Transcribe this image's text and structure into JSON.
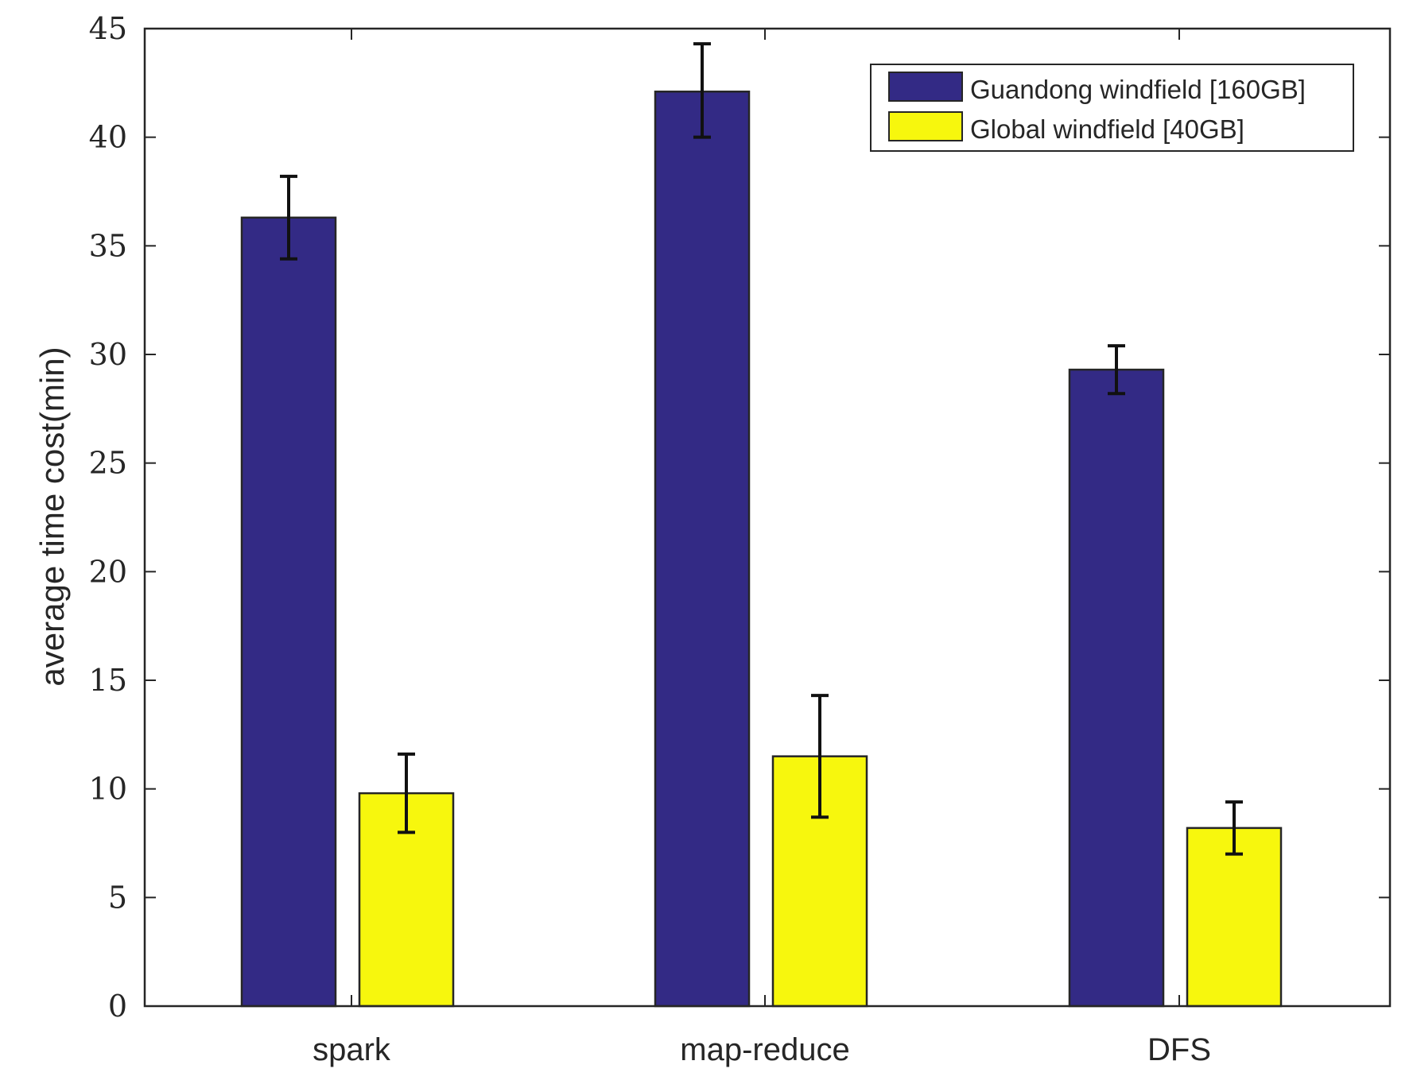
{
  "chart_data": {
    "type": "bar",
    "title": "",
    "xlabel": "",
    "ylabel": "average time cost(min)",
    "categories": [
      "spark",
      "map-reduce",
      "DFS"
    ],
    "ylim": [
      0,
      45
    ],
    "yticks": [
      0,
      5,
      10,
      15,
      20,
      25,
      30,
      35,
      40,
      45
    ],
    "grid": false,
    "legend_position": "top-right",
    "series": [
      {
        "name": "Guandong windfield [160GB]",
        "color": "#332a85",
        "values": [
          36.3,
          42.1,
          29.3
        ],
        "error_low": [
          34.4,
          40.0,
          28.2
        ],
        "error_high": [
          38.2,
          44.3,
          30.4
        ]
      },
      {
        "name": "Global windfield [40GB]",
        "color": "#f7f70d",
        "values": [
          9.8,
          11.5,
          8.2
        ],
        "error_low": [
          8.0,
          8.7,
          7.0
        ],
        "error_high": [
          11.6,
          14.3,
          9.4
        ]
      }
    ]
  }
}
